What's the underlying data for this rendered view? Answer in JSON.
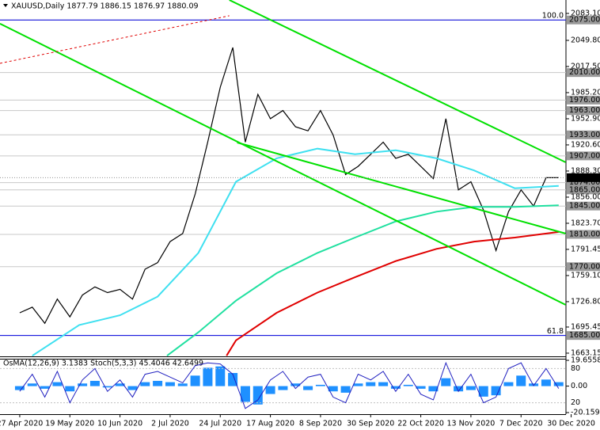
{
  "chart_data": {
    "type": "line",
    "title": "XAUUSD,Daily  1877.79 1886.15 1876.97 1880.09",
    "xlim": [
      -6.3,
      185.2
    ],
    "xticks": [
      {
        "value": 0,
        "label": "27 Apr 2020"
      },
      {
        "value": 16,
        "label": "19 May 2020"
      },
      {
        "value": 32,
        "label": "10 Jun 2020"
      },
      {
        "value": 48,
        "label": "2 Jul 2020"
      },
      {
        "value": 64,
        "label": "24 Jul 2020"
      },
      {
        "value": 80,
        "label": "17 Aug 2020"
      },
      {
        "value": 96,
        "label": "8 Sep 2020"
      },
      {
        "value": 112,
        "label": "30 Sep 2020"
      },
      {
        "value": 128,
        "label": "22 Oct 2020"
      },
      {
        "value": 144,
        "label": "13 Nov 2020"
      },
      {
        "value": 160,
        "label": "7 Dec 2020"
      },
      {
        "value": 176,
        "label": "30 Dec 2020"
      }
    ],
    "ylim": [
      1659.2,
      2099.7
    ],
    "yticks": [
      {
        "value": 2083.1,
        "label": "2083.10"
      },
      {
        "value": 2049.8,
        "label": "2049.80"
      },
      {
        "value": 2017.5,
        "label": "2017.50"
      },
      {
        "value": 1985.2,
        "label": "1985.20"
      },
      {
        "value": 1952.9,
        "label": "1952.90"
      },
      {
        "value": 1920.6,
        "label": "1920.60"
      },
      {
        "value": 1888.3,
        "label": "1888.30"
      },
      {
        "value": 1856,
        "label": "1856.00"
      },
      {
        "value": 1823.7,
        "label": "1823.70"
      },
      1791.45,
      {
        "value": 1759.1,
        "label": "1759.10"
      },
      {
        "value": 1726.8,
        "label": "1726.80"
      },
      1695.45,
      1663.15
    ],
    "levels": [
      {
        "value": 2075,
        "label": "2075.00"
      },
      {
        "value": 2010,
        "label": "2010.00"
      },
      {
        "value": 1976,
        "label": "1976.00"
      },
      {
        "value": 1963,
        "label": "1963.00"
      },
      {
        "value": 1933,
        "label": "1933.00"
      },
      {
        "value": 1907,
        "label": "1907.00"
      },
      {
        "value": 1874,
        "label": "1874.00"
      },
      {
        "value": 1865,
        "label": "1865.00"
      },
      {
        "value": 1845,
        "label": "1845.00"
      },
      {
        "value": 1810,
        "label": "1810.00"
      },
      {
        "value": 1770,
        "label": "1770.00"
      },
      {
        "value": 1685,
        "label": "1685.00"
      }
    ],
    "last_price": 1880.09,
    "fib": [
      {
        "value": 2075,
        "label": "100.0"
      },
      {
        "value": 1685,
        "label": "61.8"
      }
    ],
    "series": [
      {
        "color": "#000000",
        "x": [
          0,
          4,
          8,
          12,
          16,
          20,
          24,
          28,
          32,
          36,
          40,
          44,
          48,
          52,
          56,
          60,
          64,
          68,
          72,
          76,
          80,
          84,
          88,
          92,
          96,
          100,
          104,
          108,
          112,
          116,
          120,
          124,
          128,
          132,
          136,
          140,
          144,
          148,
          152,
          156,
          160,
          164,
          168,
          172
        ],
        "values": [
          1713,
          1720,
          1700,
          1730,
          1708,
          1735,
          1745,
          1738,
          1742,
          1730,
          1767,
          1775,
          1801,
          1811,
          1860,
          1924,
          1992,
          2041,
          1924,
          1983,
          1953,
          1963,
          1943,
          1938,
          1963,
          1933,
          1884,
          1894,
          1909,
          1924,
          1904,
          1909,
          1894,
          1879,
          1953,
          1865,
          1875,
          1840,
          1790,
          1838,
          1865,
          1845,
          1880,
          1880
        ]
      },
      {
        "color": "#3fe0f0",
        "x": [
          4,
          19,
          32,
          44,
          57,
          69,
          82,
          95,
          107,
          120,
          133,
          145,
          158,
          172
        ],
        "values": [
          1660,
          1698,
          1710,
          1733,
          1787,
          1875,
          1904,
          1916,
          1909,
          1914,
          1904,
          1889,
          1867,
          1870
        ]
      },
      {
        "color": "#20e0a0",
        "x": [
          47,
          57,
          69,
          82,
          95,
          107,
          120,
          133,
          145,
          158,
          172
        ],
        "values": [
          1660,
          1689,
          1728,
          1762,
          1787,
          1806,
          1826,
          1838,
          1844,
          1844,
          1846
        ]
      },
      {
        "color": "#e00000",
        "x": [
          66,
          69,
          82,
          95,
          107,
          120,
          133,
          145,
          158,
          172
        ],
        "values": [
          1660,
          1679,
          1713,
          1738,
          1757,
          1777,
          1792,
          1801,
          1806,
          1813
        ]
      },
      {
        "color": "#00e000",
        "x": [
          -6.3,
          174.2
        ],
        "values": [
          2070.4,
          1722.9
        ]
      },
      {
        "color": "#00e000",
        "x": [
          66.9,
          174.2
        ],
        "values": [
          2099.7,
          1899.1
        ]
      },
      {
        "color": "#00e000",
        "x": [
          69.4,
          174.2
        ],
        "values": [
          1923.5,
          1811.0
        ]
      },
      {
        "color": "#e00000",
        "x": [
          -6.3,
          66.9
        ],
        "values": [
          2021.4,
          2080.2
        ],
        "dash": true
      }
    ],
    "indicator": {
      "title": "OsMA(12,26,9) 3.1383 Stoch(5,3,3) 45.4046 42.6499",
      "x": [
        0,
        4,
        8,
        12,
        16,
        20,
        24,
        28,
        32,
        36,
        40,
        44,
        48,
        52,
        56,
        60,
        64,
        68,
        72,
        76,
        80,
        84,
        88,
        92,
        96,
        100,
        104,
        108,
        112,
        116,
        120,
        124,
        128,
        132,
        136,
        140,
        144,
        148,
        152,
        156,
        160,
        164,
        168,
        172
      ],
      "osma": {
        "color": "#1e90ff",
        "lim": [
          -20.1597,
          19.6558
        ],
        "ticks": [
          19.6558,
          {
            "value": 0,
            "label": "0.00"
          },
          -20.1597
        ],
        "values": [
          -3,
          2,
          -2,
          3,
          -4,
          2,
          4,
          -1,
          2,
          -3,
          3,
          4,
          3,
          2,
          8,
          14,
          15,
          10,
          -12,
          -14,
          -6,
          -3,
          2,
          -3,
          1,
          -4,
          -5,
          2,
          3,
          3,
          -2,
          1,
          -2,
          -4,
          6,
          -4,
          -3,
          -8,
          -7,
          3,
          8,
          2,
          5,
          3
        ]
      },
      "stoch": {
        "color": "#2020c0",
        "lim": [
          0,
          100
        ],
        "ticks": [
          80,
          20
        ],
        "values": [
          40,
          70,
          30,
          75,
          20,
          60,
          80,
          40,
          60,
          30,
          70,
          75,
          65,
          55,
          85,
          90,
          88,
          70,
          10,
          25,
          60,
          75,
          45,
          65,
          70,
          30,
          20,
          70,
          60,
          75,
          40,
          70,
          35,
          25,
          90,
          40,
          70,
          20,
          30,
          80,
          90,
          50,
          80,
          45
        ]
      }
    }
  }
}
